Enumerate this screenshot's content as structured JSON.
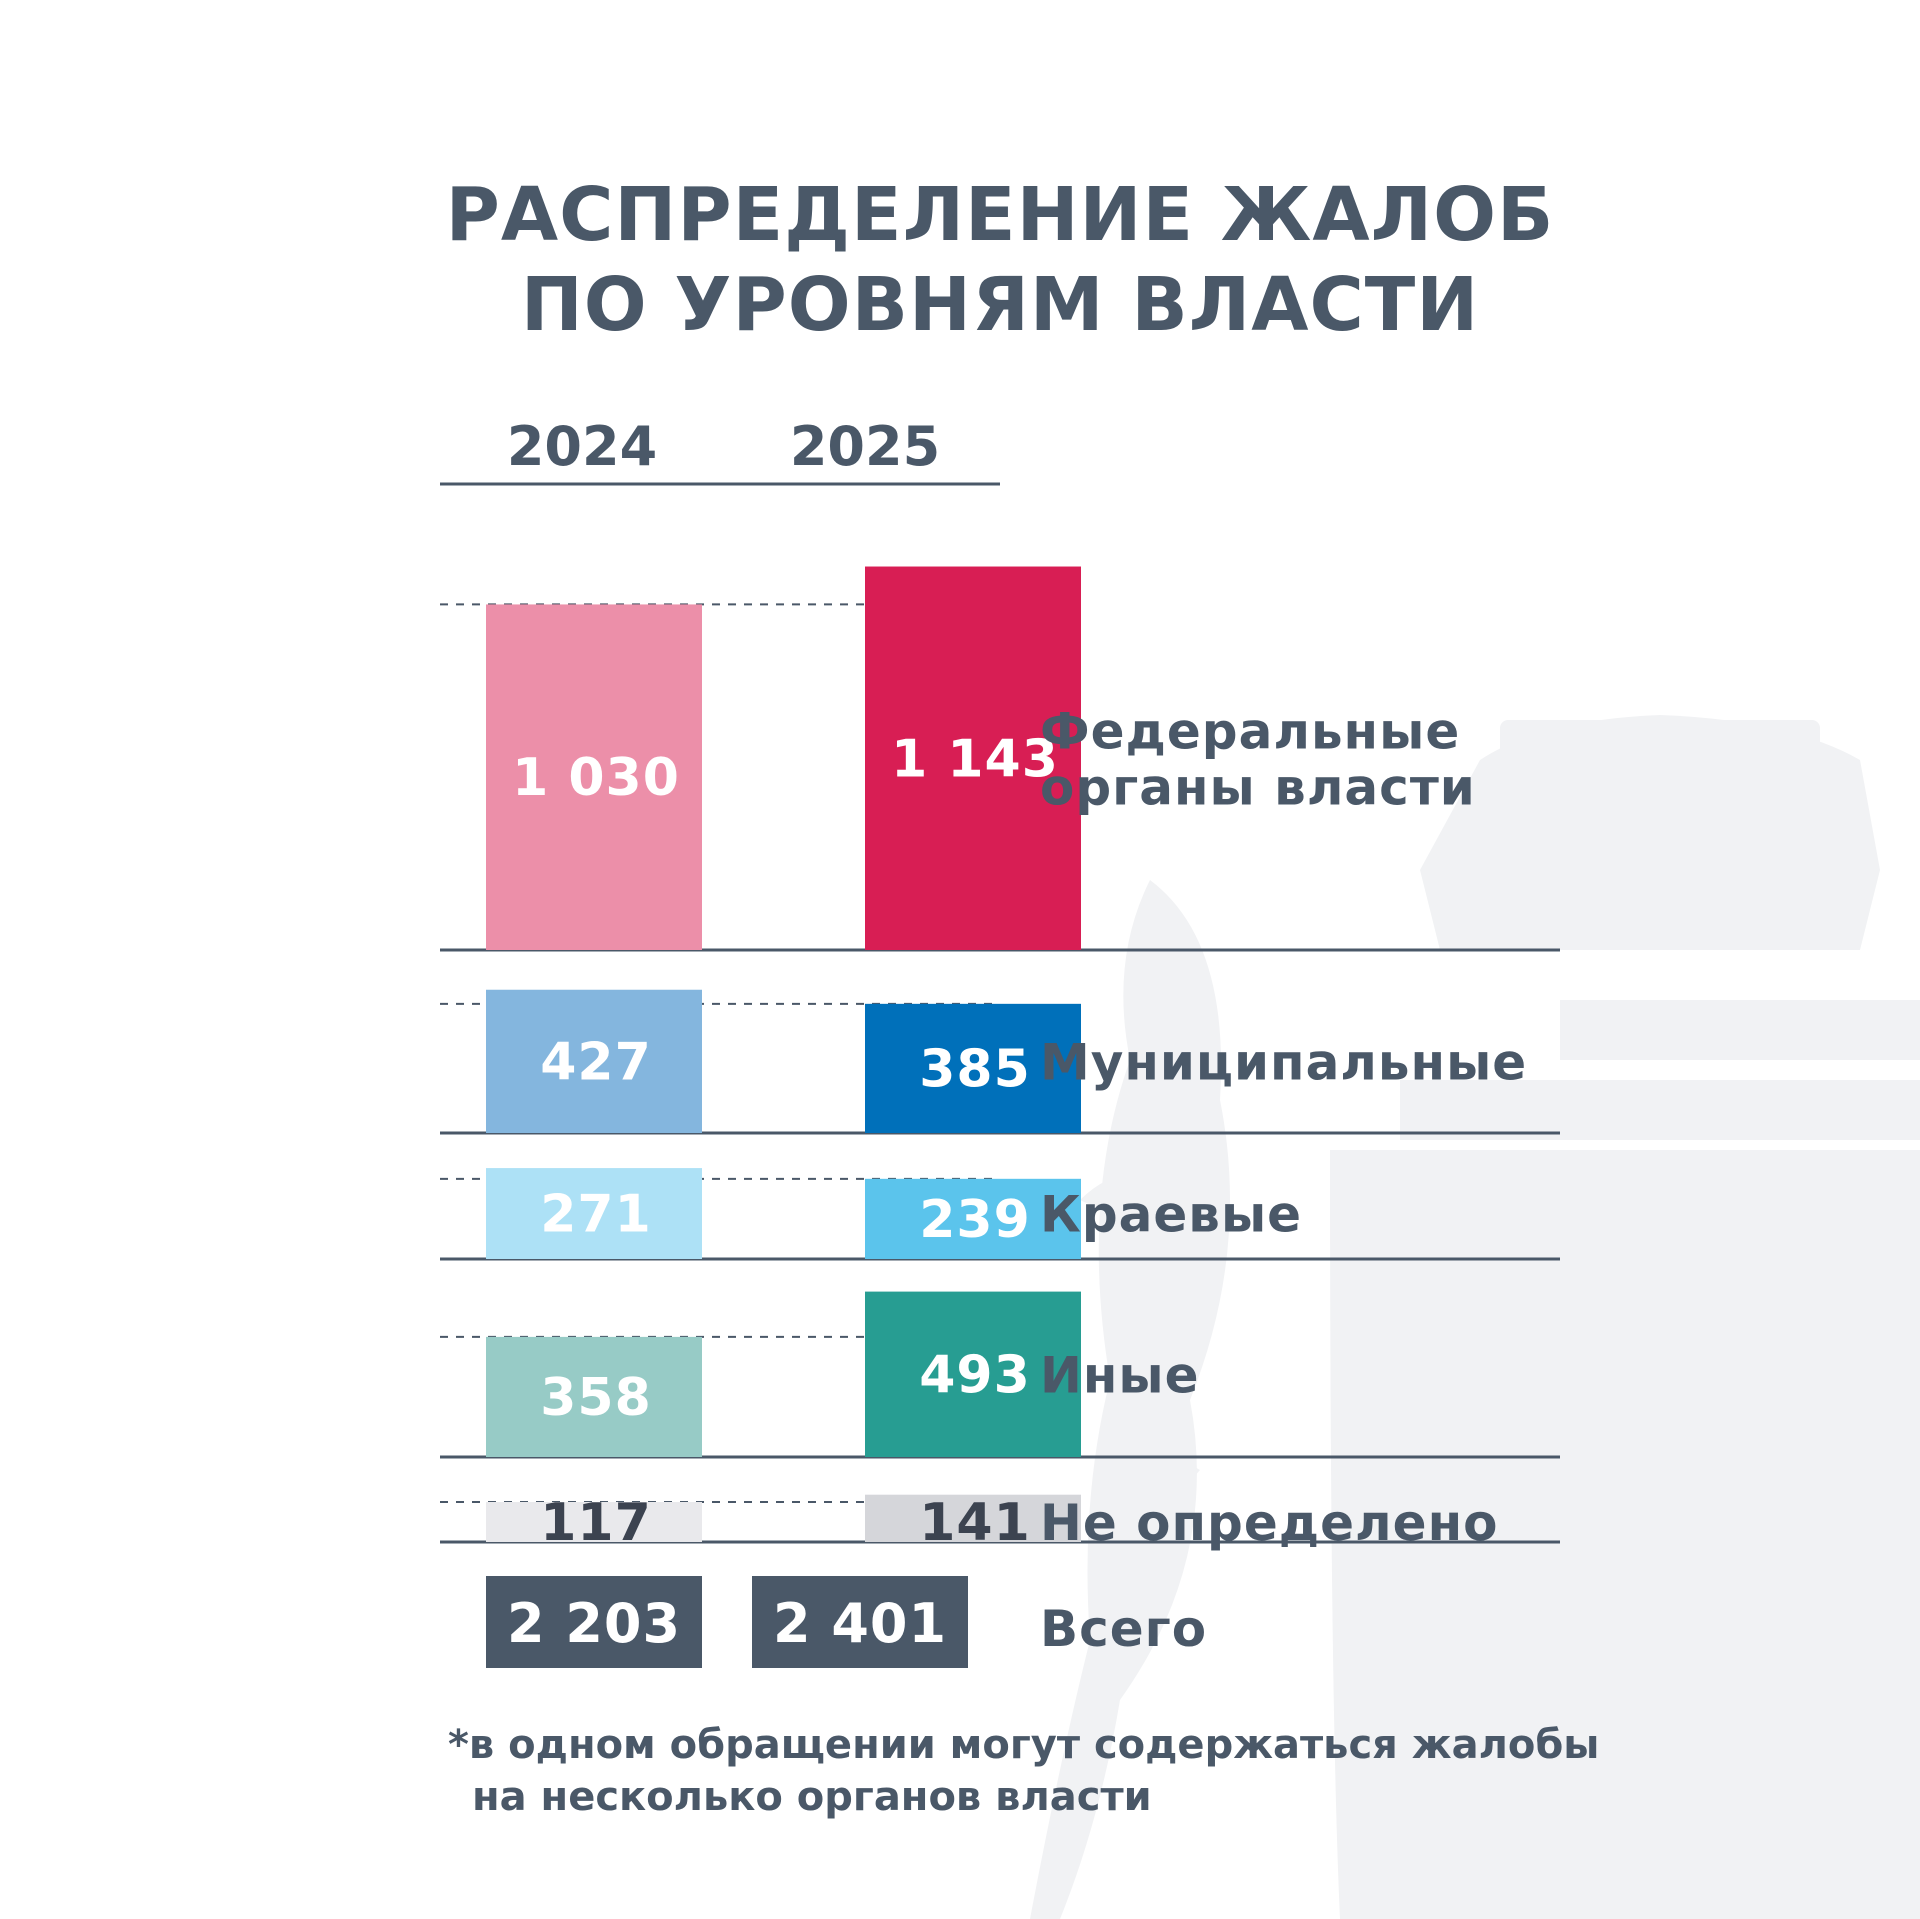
{
  "title": [
    "РАСПРЕДЕЛЕНИЕ ЖАЛОБ",
    "ПО УРОВНЯМ ВЛАСТИ"
  ],
  "years": [
    "2024",
    "2025"
  ],
  "chart_data": {
    "type": "bar",
    "title": "РАСПРЕДЕЛЕНИЕ ЖАЛОБ ПО УРОВНЯМ ВЛАСТИ",
    "series_years": [
      "2024",
      "2025"
    ],
    "categories": [
      {
        "label_lines": [
          "Федеральные",
          "органы власти"
        ],
        "values": [
          1030,
          1143
        ],
        "labels": [
          "1 030",
          "1 143"
        ],
        "colors": [
          "#ec8fa9",
          "#d81e54"
        ],
        "label_colors": [
          "#ffffff",
          "#ffffff"
        ]
      },
      {
        "label_lines": [
          "Муниципальные"
        ],
        "values": [
          427,
          385
        ],
        "labels": [
          "427",
          "385"
        ],
        "colors": [
          "#84b6de",
          "#0070ba"
        ],
        "label_colors": [
          "#ffffff",
          "#ffffff"
        ]
      },
      {
        "label_lines": [
          "Краевые"
        ],
        "values": [
          271,
          239
        ],
        "labels": [
          "271",
          "239"
        ],
        "colors": [
          "#ade1f6",
          "#5bc4ec"
        ],
        "label_colors": [
          "#ffffff",
          "#ffffff"
        ]
      },
      {
        "label_lines": [
          "Иные"
        ],
        "values": [
          358,
          493
        ],
        "labels": [
          "358",
          "493"
        ],
        "colors": [
          "#97cbc6",
          "#279d92"
        ],
        "label_colors": [
          "#ffffff",
          "#ffffff"
        ]
      },
      {
        "label_lines": [
          "Не определено"
        ],
        "values": [
          117,
          141
        ],
        "labels": [
          "117",
          "141"
        ],
        "colors": [
          "#e9e9ec",
          "#d5d6da"
        ],
        "label_colors": [
          "#3c4350",
          "#3c4350"
        ]
      }
    ],
    "total": {
      "label": "Всего",
      "values": [
        2203,
        2401
      ],
      "labels": [
        "2 203",
        "2 401"
      ],
      "color": "#4a5868"
    }
  },
  "footnote": [
    "*в одном обращении могут содержаться жалобы",
    "на несколько органов власти"
  ],
  "colors": {
    "text": "#4a5868",
    "rule": "#4a5868",
    "watermark": "#f1f2f4"
  }
}
